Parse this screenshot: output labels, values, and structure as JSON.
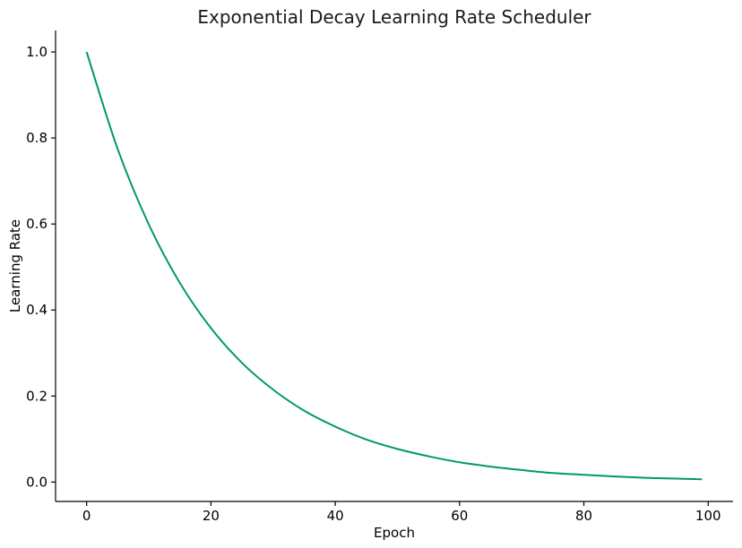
{
  "chart_data": {
    "type": "line",
    "title": "Exponential Decay Learning Rate Scheduler",
    "xlabel": "Epoch",
    "ylabel": "Learning Rate",
    "xlim": [
      -5,
      104
    ],
    "ylim": [
      -0.045,
      1.05
    ],
    "xticks": [
      0,
      20,
      40,
      60,
      80,
      100
    ],
    "yticks": [
      0.0,
      0.2,
      0.4,
      0.6,
      0.8,
      1.0
    ],
    "xtick_labels": [
      "0",
      "20",
      "40",
      "60",
      "80",
      "100"
    ],
    "ytick_labels": [
      "0.0",
      "0.2",
      "0.4",
      "0.6",
      "0.8",
      "1.0"
    ],
    "grid": false,
    "series": [
      {
        "color": "#009966",
        "x": [
          0,
          5,
          10,
          15,
          20,
          25,
          30,
          35,
          40,
          45,
          50,
          55,
          60,
          65,
          70,
          75,
          80,
          85,
          90,
          95,
          99
        ],
        "y": [
          1.0,
          0.774,
          0.599,
          0.463,
          0.358,
          0.277,
          0.215,
          0.166,
          0.129,
          0.099,
          0.077,
          0.06,
          0.046,
          0.036,
          0.028,
          0.021,
          0.017,
          0.013,
          0.01,
          0.008,
          0.0066
        ]
      }
    ]
  }
}
